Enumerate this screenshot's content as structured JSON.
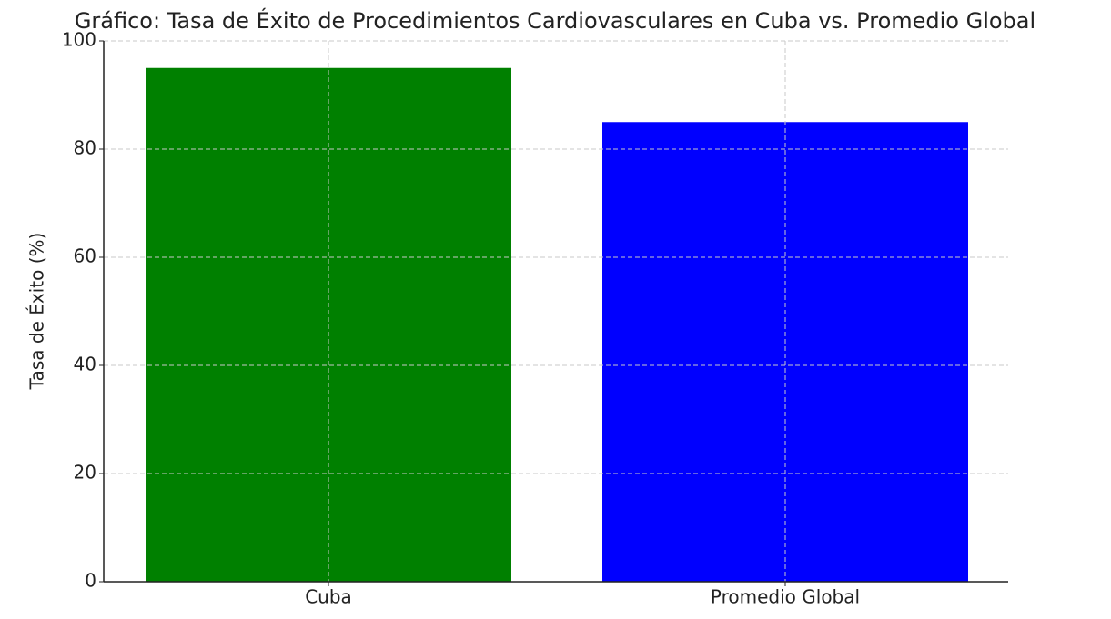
{
  "chart_data": {
    "type": "bar",
    "title": "Gráfico: Tasa de Éxito de Procedimientos Cardiovasculares en Cuba vs. Promedio Global",
    "y_label": "Tasa de Éxito (%)",
    "categories": [
      "Cuba",
      "Promedio Global"
    ],
    "values": [
      95,
      85
    ],
    "colors": [
      "#008000",
      "#0000ff"
    ],
    "ylim": [
      0,
      100
    ],
    "yticks": [
      0,
      20,
      40,
      60,
      80,
      100
    ],
    "grid": true
  }
}
